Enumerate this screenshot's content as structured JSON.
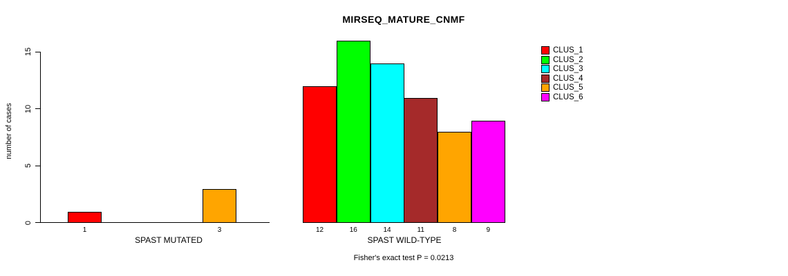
{
  "page": {
    "background": "#FFFFFF"
  },
  "chart_data": {
    "type": "bar",
    "title": "MIRSEQ_MATURE_CNMF",
    "ylabel": "number of cases",
    "ylim": [
      0,
      16
    ],
    "yticks": [
      0,
      5,
      10,
      15
    ],
    "grid": false,
    "footnote": "Fisher's exact test P = 0.0213",
    "legend": {
      "position": "top-right",
      "entries": [
        {
          "label": "CLUS_1",
          "color": "#FF0000"
        },
        {
          "label": "CLUS_2",
          "color": "#00FF00"
        },
        {
          "label": "CLUS_3",
          "color": "#00FFFF"
        },
        {
          "label": "CLUS_4",
          "color": "#A52A2A"
        },
        {
          "label": "CLUS_5",
          "color": "#FFA500"
        },
        {
          "label": "CLUS_6",
          "color": "#FF00FF"
        }
      ]
    },
    "groups": [
      {
        "label": "SPAST MUTATED",
        "bars": [
          {
            "cluster": "CLUS_1",
            "value": 1,
            "label": "1",
            "color": "#FF0000",
            "slot": 0
          },
          {
            "cluster": "CLUS_5",
            "value": 3,
            "label": "3",
            "color": "#FFA500",
            "slot": 4
          }
        ]
      },
      {
        "label": "SPAST WILD-TYPE",
        "bars": [
          {
            "cluster": "CLUS_1",
            "value": 12,
            "label": "12",
            "color": "#FF0000",
            "slot": 0
          },
          {
            "cluster": "CLUS_2",
            "value": 16,
            "label": "16",
            "color": "#00FF00",
            "slot": 1
          },
          {
            "cluster": "CLUS_3",
            "value": 14,
            "label": "14",
            "color": "#00FFFF",
            "slot": 2
          },
          {
            "cluster": "CLUS_4",
            "value": 11,
            "label": "11",
            "color": "#A52A2A",
            "slot": 3
          },
          {
            "cluster": "CLUS_5",
            "value": 8,
            "label": "8",
            "color": "#FFA500",
            "slot": 4
          },
          {
            "cluster": "CLUS_6",
            "value": 9,
            "label": "9",
            "color": "#FF00FF",
            "slot": 5
          }
        ]
      }
    ]
  }
}
